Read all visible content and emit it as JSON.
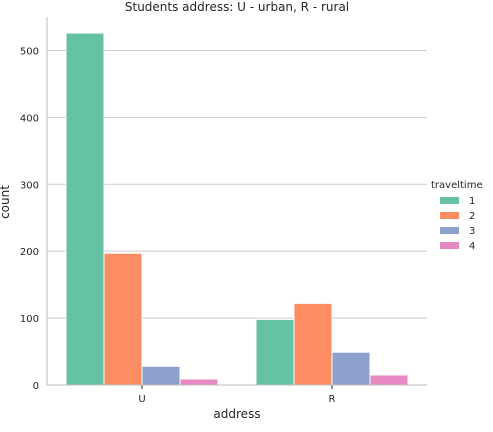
{
  "chart_data": {
    "type": "bar",
    "title": "Students address: U - urban, R - rural",
    "xlabel": "address",
    "ylabel": "count",
    "categories": [
      "U",
      "R"
    ],
    "ylim": [
      0,
      550
    ],
    "yticks": [
      0,
      100,
      200,
      300,
      400,
      500
    ],
    "grid": "horizontal",
    "legend": {
      "title": "traveltime",
      "placement": "right"
    },
    "series": [
      {
        "name": "1",
        "color": "#66c2a5",
        "values": [
          526,
          98
        ]
      },
      {
        "name": "2",
        "color": "#fc8d62",
        "values": [
          197,
          122
        ]
      },
      {
        "name": "3",
        "color": "#8da0cb",
        "values": [
          28,
          49
        ]
      },
      {
        "name": "4",
        "color": "#e78ac3",
        "values": [
          9,
          15
        ]
      }
    ]
  }
}
